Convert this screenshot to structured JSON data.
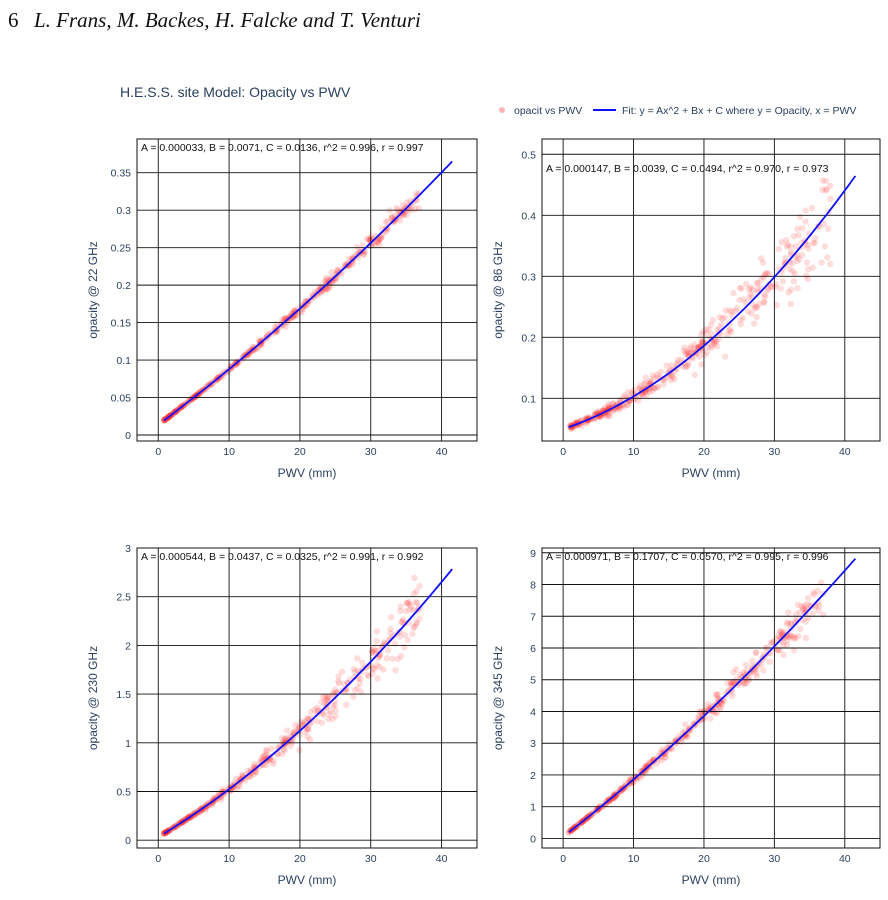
{
  "header": {
    "page_number": "6",
    "authors": "L. Frans, M. Backes, H. Falcke and T. Venturi"
  },
  "figure": {
    "title": "H.E.S.S. site Model: Opacity vs PWV",
    "legend": {
      "scatter_label": "opacit vs PWV",
      "fit_label": "Fit: y = Ax^2 + Bx + C where y = Opacity, x = PWV",
      "placement": "top-right"
    }
  },
  "colors": {
    "scatter": "#ff2a2a",
    "fit_line": "#1010ff",
    "axis_text": "#2a3f5f",
    "grid": "#111111"
  },
  "chart_data": [
    {
      "type": "scatter",
      "xlabel": "PWV (mm)",
      "ylabel": "opacity @ 22 GHz",
      "xlim": [
        -3,
        45
      ],
      "ylim": [
        -0.008,
        0.395
      ],
      "xticks": [
        0,
        10,
        20,
        30,
        40
      ],
      "yticks": [
        0,
        0.05,
        0.1,
        0.15,
        0.2,
        0.25,
        0.3,
        0.35
      ],
      "ytick_labels": [
        "0",
        "0.05",
        "0.1",
        "0.15",
        "0.2",
        "0.25",
        "0.3",
        "0.35"
      ],
      "grid": true,
      "fit": {
        "A": 3.3e-05,
        "B": 0.0071,
        "C": 0.0136,
        "x_range": [
          0.8,
          41.5
        ]
      },
      "annotation": "A = 0.000033, B = 0.0071, C = 0.0136, r^2 = 0.996, r = 0.997",
      "scatter_x_range": [
        0.8,
        37
      ],
      "scatter_spread": 0.025
    },
    {
      "type": "scatter",
      "xlabel": "PWV (mm)",
      "ylabel": "opacity @ 86 GHz",
      "xlim": [
        -3,
        45
      ],
      "ylim": [
        0.03,
        0.525
      ],
      "xticks": [
        0,
        10,
        20,
        30,
        40
      ],
      "yticks": [
        0.1,
        0.2,
        0.3,
        0.4,
        0.5
      ],
      "ytick_labels": [
        "0.1",
        "0.2",
        "0.3",
        "0.4",
        "0.5"
      ],
      "grid": true,
      "fit": {
        "A": 0.000147,
        "B": 0.0039,
        "C": 0.0494,
        "x_range": [
          0.8,
          41.5
        ]
      },
      "annotation": "A = 0.000147, B = 0.0039, C = 0.0494, r^2 = 0.970, r = 0.973",
      "scatter_x_range": [
        0.8,
        38
      ],
      "scatter_spread": 0.1
    },
    {
      "type": "scatter",
      "xlabel": "PWV (mm)",
      "ylabel": "opacity @ 230 GHz",
      "xlim": [
        -3,
        45
      ],
      "ylim": [
        -0.08,
        3.0
      ],
      "xticks": [
        0,
        10,
        20,
        30,
        40
      ],
      "yticks": [
        0,
        0.5,
        1,
        1.5,
        2,
        2.5,
        3
      ],
      "ytick_labels": [
        "0",
        "0.5",
        "1",
        "1.5",
        "2",
        "2.5",
        "3"
      ],
      "grid": true,
      "fit": {
        "A": 0.000544,
        "B": 0.0437,
        "C": 0.0325,
        "x_range": [
          0.8,
          41.5
        ]
      },
      "annotation": "A = 0.000544, B = 0.0437, C = 0.0325, r^2 = 0.991, r = 0.992",
      "scatter_x_range": [
        0.8,
        37
      ],
      "scatter_spread": 0.07
    },
    {
      "type": "scatter",
      "xlabel": "PWV (mm)",
      "ylabel": "opacity @ 345 GHz",
      "xlim": [
        -3,
        45
      ],
      "ylim": [
        -0.3,
        9.15
      ],
      "xticks": [
        0,
        10,
        20,
        30,
        40
      ],
      "yticks": [
        0,
        1,
        2,
        3,
        4,
        5,
        6,
        7,
        8,
        9
      ],
      "ytick_labels": [
        "0",
        "1",
        "2",
        "3",
        "4",
        "5",
        "6",
        "7",
        "8",
        "9"
      ],
      "grid": true,
      "fit": {
        "A": 0.000971,
        "B": 0.1707,
        "C": 0.057,
        "x_range": [
          0.8,
          41.5
        ]
      },
      "annotation": "A = 0.000971, B = 0.1707, C = 0.0570, r^2 = 0.995, r = 0.996",
      "scatter_x_range": [
        0.8,
        37
      ],
      "scatter_spread": 0.045
    }
  ]
}
